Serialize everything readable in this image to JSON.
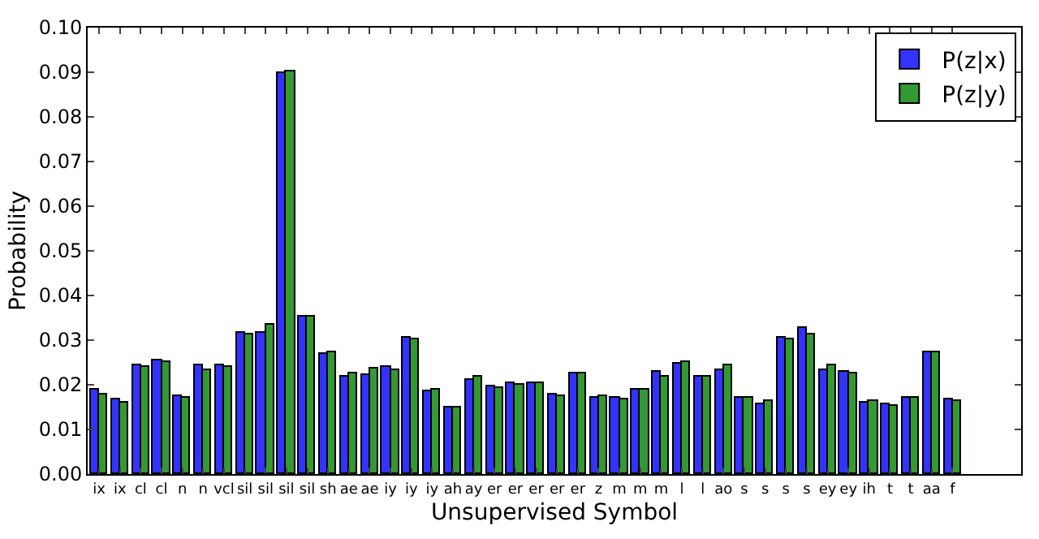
{
  "chart_data": {
    "type": "bar",
    "xlabel": "Unsupervised Symbol",
    "ylabel": "Probability",
    "categories": [
      "ix",
      "ix",
      "cl",
      "cl",
      "n",
      "n",
      "vcl",
      "sil",
      "sil",
      "sil",
      "sil",
      "sh",
      "ae",
      "ae",
      "iy",
      "iy",
      "iy",
      "ah",
      "ay",
      "er",
      "er",
      "er",
      "er",
      "er",
      "z",
      "m",
      "m",
      "m",
      "l",
      "l",
      "ao",
      "s",
      "s",
      "s",
      "s",
      "ey",
      "ey",
      "ih",
      "t",
      "t",
      "aa",
      "f"
    ],
    "series": [
      {
        "name": "P(z|x)",
        "color": "#3333ff",
        "values": [
          0.0188,
          0.0166,
          0.0245,
          0.0253,
          0.0174,
          0.0243,
          0.0243,
          0.0317,
          0.0317,
          0.09,
          0.0354,
          0.0268,
          0.0217,
          0.0221,
          0.024,
          0.0305,
          0.0186,
          0.015,
          0.0211,
          0.0195,
          0.0202,
          0.0205,
          0.0179,
          0.0225,
          0.0172,
          0.0172,
          0.019,
          0.0228,
          0.0247,
          0.0218,
          0.0234,
          0.017,
          0.0158,
          0.0305,
          0.0328,
          0.0231,
          0.0228,
          0.016,
          0.0158,
          0.017,
          0.0273,
          0.0167
        ]
      },
      {
        "name": "P(z|y)",
        "color": "#339933",
        "values": [
          0.0179,
          0.016,
          0.024,
          0.025,
          0.017,
          0.0234,
          0.024,
          0.0314,
          0.0333,
          0.0902,
          0.0354,
          0.0272,
          0.0225,
          0.0237,
          0.0234,
          0.0301,
          0.019,
          0.015,
          0.0218,
          0.0193,
          0.0199,
          0.0202,
          0.0176,
          0.0225,
          0.0176,
          0.0169,
          0.019,
          0.0218,
          0.025,
          0.0218,
          0.0243,
          0.017,
          0.0163,
          0.0301,
          0.0314,
          0.0243,
          0.0225,
          0.0163,
          0.0154,
          0.017,
          0.0273,
          0.0163
        ]
      }
    ],
    "ylim": [
      0,
      0.1
    ],
    "yticks": [
      {
        "value": 0,
        "label": "0.00"
      },
      {
        "value": 0.01,
        "label": "0.01"
      },
      {
        "value": 0.02,
        "label": "0.02"
      },
      {
        "value": 0.03,
        "label": "0.03"
      },
      {
        "value": 0.04,
        "label": "0.04"
      },
      {
        "value": 0.05,
        "label": "0.05"
      },
      {
        "value": 0.06,
        "label": "0.06"
      },
      {
        "value": 0.07,
        "label": "0.07"
      },
      {
        "value": 0.08,
        "label": "0.08"
      },
      {
        "value": 0.09,
        "label": "0.09"
      },
      {
        "value": 0.1,
        "label": "0.10"
      }
    ],
    "legend": "top right"
  }
}
